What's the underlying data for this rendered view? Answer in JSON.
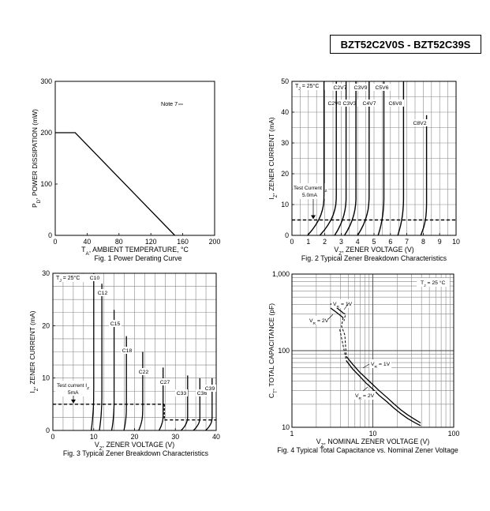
{
  "part_number": "BZT52C2V0S - BZT52C39S",
  "chart_data": [
    {
      "type": "line",
      "title": "Fig. 1  Power Derating Curve",
      "xlabel": "T_A, AMBIENT TEMPERATURE, °C",
      "ylabel": "P_D, POWER DISSIPATION (mW)",
      "xlim": [
        0,
        200
      ],
      "ylim": [
        0,
        300
      ],
      "xticks": [
        0,
        40,
        80,
        120,
        160,
        200
      ],
      "yticks": [
        0,
        100,
        200,
        300
      ],
      "grid": false,
      "annotations": [
        "Note 7"
      ],
      "series": [
        {
          "x": [
            0,
            25,
            150
          ],
          "y": [
            200,
            200,
            0
          ]
        }
      ]
    },
    {
      "type": "line",
      "title": "Fig. 2  Typical Zener Breakdown Characteristics",
      "xlabel": "V_Z, ZENER VOLTAGE (V)",
      "ylabel": "I_Z, ZENER CURRENT (mA)",
      "xlim": [
        0,
        10
      ],
      "ylim": [
        0,
        50
      ],
      "xticks": [
        0,
        1,
        2,
        3,
        4,
        5,
        6,
        7,
        8,
        9,
        10
      ],
      "yticks": [
        0,
        10,
        20,
        30,
        40,
        50
      ],
      "grid": true,
      "condition": "T_J = 25°C",
      "test_current": {
        "label": "Test Current I_Z",
        "value": "5.0mA",
        "mA": 5
      },
      "series": [
        {
          "name": "C2V0",
          "vz": 1.95
        },
        {
          "name": "C2V7",
          "vz": 2.7
        },
        {
          "name": "C3V3",
          "vz": 3.3
        },
        {
          "name": "C3V9",
          "vz": 3.9
        },
        {
          "name": "C4V7",
          "vz": 4.7
        },
        {
          "name": "C5V6",
          "vz": 5.6
        },
        {
          "name": "C6V8",
          "vz": 6.8
        },
        {
          "name": "C8V2",
          "vz": 8.2
        }
      ]
    },
    {
      "type": "line",
      "title": "Fig. 3 Typical Zener Breakdown Characteristics",
      "xlabel": "V_Z, ZENER VOLTAGE (V)",
      "ylabel": "I_Z, ZENER CURRENT (mA)",
      "xlim": [
        0,
        40
      ],
      "ylim": [
        0,
        30
      ],
      "xticks": [
        0,
        10,
        20,
        30,
        40
      ],
      "yticks": [
        0,
        10,
        20,
        30
      ],
      "grid": true,
      "condition": "T_J = 25°C",
      "test_current": {
        "label": "Test current I_Z",
        "value": "5mA",
        "mA": 5,
        "mA_high_voltage": 2
      },
      "series": [
        {
          "name": "C10",
          "vz": 10
        },
        {
          "name": "C12",
          "vz": 12
        },
        {
          "name": "C15",
          "vz": 15
        },
        {
          "name": "C18",
          "vz": 18
        },
        {
          "name": "C22",
          "vz": 22
        },
        {
          "name": "C27",
          "vz": 27
        },
        {
          "name": "C33",
          "vz": 33
        },
        {
          "name": "C36",
          "vz": 36
        },
        {
          "name": "C39",
          "vz": 39
        }
      ]
    },
    {
      "type": "line",
      "title": "Fig. 4  Typical Total Capacitance vs. Nominal Zener Voltage",
      "xlabel": "V_Z, NOMINAL ZENER VOLTAGE (V)",
      "ylabel": "C_T, TOTAL CAPACITANCE (pF)",
      "xscale": "log",
      "yscale": "log",
      "xlim": [
        1,
        100
      ],
      "ylim": [
        10,
        1000
      ],
      "xticks": [
        1,
        10,
        100
      ],
      "yticks": [
        10,
        100,
        1000
      ],
      "ytick_labels": [
        "10",
        "100",
        "1,000"
      ],
      "grid": true,
      "condition": "T_J = 25 °C",
      "series": [
        {
          "name": "V_R = 1V",
          "x": [
            3.0,
            3.5,
            4.3
          ],
          "y": [
            410,
            370,
            310
          ]
        },
        {
          "name": "V_R = 2V",
          "x": [
            3.0,
            3.5,
            4.3
          ],
          "y": [
            360,
            320,
            270
          ]
        },
        {
          "name": "V_R = 1V",
          "x": [
            4.7,
            5.6,
            6.8,
            8.2,
            10,
            12,
            15,
            18,
            22,
            27,
            33,
            39
          ],
          "y": [
            84,
            67,
            53,
            44,
            36,
            30,
            24.5,
            20.5,
            17,
            14.5,
            12.7,
            11.4
          ]
        },
        {
          "name": "V_R = 2V",
          "x": [
            4.7,
            5.6,
            6.8,
            8.2,
            10,
            12,
            15,
            18,
            22,
            27,
            33,
            39
          ],
          "y": [
            74,
            58,
            47,
            38,
            31.5,
            26,
            21.5,
            18,
            15.2,
            13,
            11.5,
            10.5
          ]
        }
      ]
    }
  ]
}
